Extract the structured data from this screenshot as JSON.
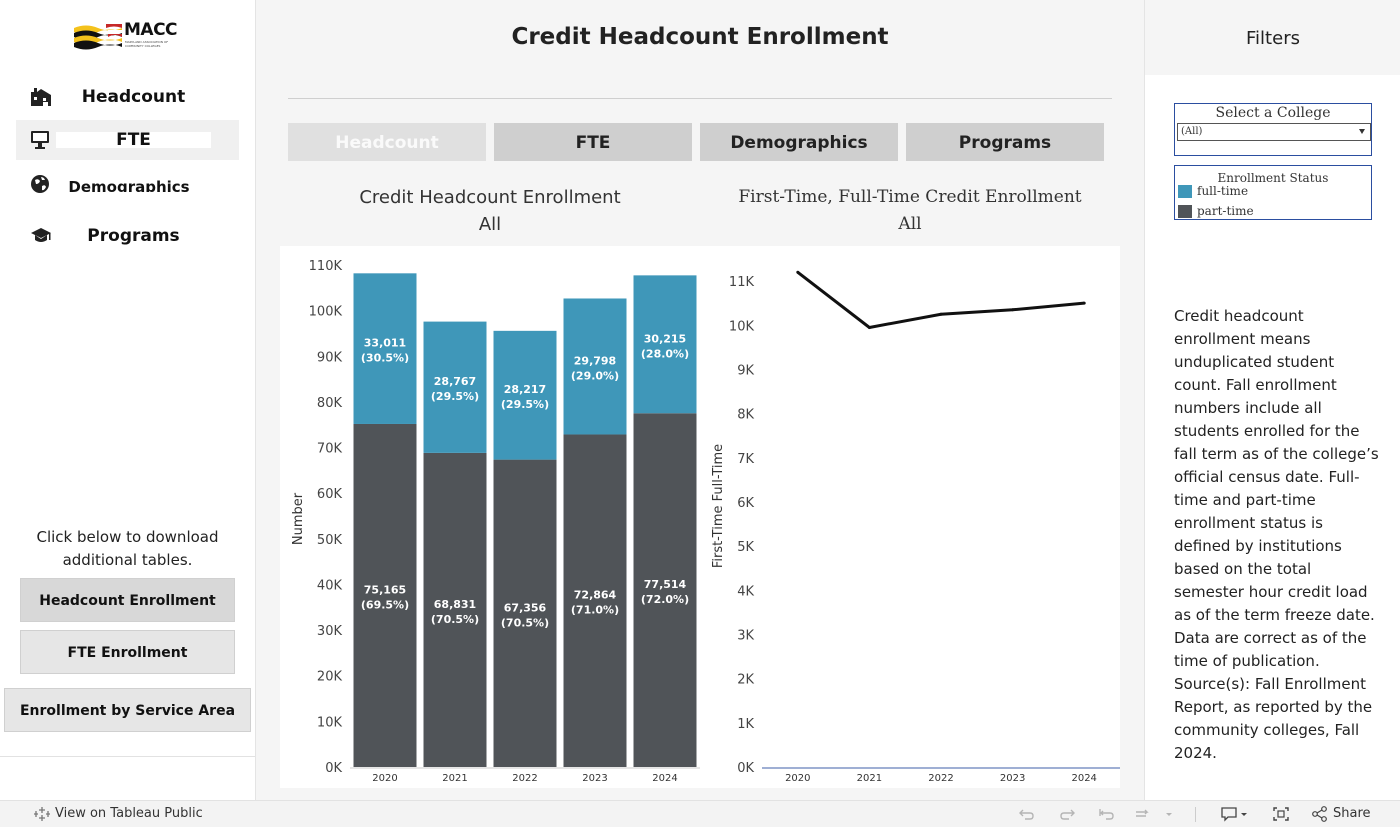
{
  "sidebar": {
    "logo_text": "MACC",
    "logo_subtext": "MARYLAND ASSOCIATION OF COMMUNITY COLLEGES",
    "nav": [
      {
        "label": "Headcount",
        "icon": "building-icon"
      },
      {
        "label": "FTE",
        "icon": "monitor-icon"
      },
      {
        "label": "Demographics",
        "icon": "globe-icon"
      },
      {
        "label": "Programs",
        "icon": "graduation-cap-icon"
      }
    ],
    "download_note": "Click below to download additional tables.",
    "downloads": [
      "Headcount Enrollment",
      "FTE Enrollment",
      "Enrollment by Service Area"
    ]
  },
  "header": {
    "title": "Credit Headcount Enrollment",
    "tabs": [
      "Headcount",
      "FTE",
      "Demographics",
      "Programs"
    ],
    "active_tab": "Headcount"
  },
  "filters": {
    "title": "Filters",
    "college_label": "Select a College",
    "college_value": "(All)",
    "status_label": "Enrollment Status",
    "status_items": [
      {
        "label": "full-time",
        "color": "#3f97b9"
      },
      {
        "label": "part-time",
        "color": "#505458"
      }
    ],
    "description": "Credit headcount enrollment means unduplicated student count. Fall enrollment numbers include all students enrolled for the fall term as of the college’s official census date.  Full-time and part-time enrollment status is defined by institutions based on the total semester hour credit load as of the term freeze date.  Data are correct as of the time of publication. Source(s):  Fall Enrollment Report, as reported by the community colleges, Fall 2024."
  },
  "footer": {
    "tableau_link": "View on Tableau Public",
    "share_label": "Share"
  },
  "chart_data": [
    {
      "type": "bar",
      "title": "Credit Headcount Enrollment",
      "subtitle": "All",
      "ylabel": "Number",
      "xlabel": "",
      "ylim": [
        0,
        110000
      ],
      "ytick_labels": [
        "0K",
        "10K",
        "20K",
        "30K",
        "40K",
        "50K",
        "60K",
        "70K",
        "80K",
        "90K",
        "100K",
        "110K"
      ],
      "categories": [
        "2020",
        "2021",
        "2022",
        "2023",
        "2024"
      ],
      "stacked": true,
      "series": [
        {
          "name": "part-time",
          "color": "#505458",
          "values": [
            75165,
            68831,
            67356,
            72864,
            77514
          ],
          "labels": [
            "75,165",
            "68,831",
            "67,356",
            "72,864",
            "77,514"
          ],
          "pct_labels": [
            "(69.5%)",
            "(70.5%)",
            "(70.5%)",
            "(71.0%)",
            "(72.0%)"
          ]
        },
        {
          "name": "full-time",
          "color": "#3f97b9",
          "values": [
            33011,
            28767,
            28217,
            29798,
            30215
          ],
          "labels": [
            "33,011",
            "28,767",
            "28,217",
            "29,798",
            "30,215"
          ],
          "pct_labels": [
            "(30.5%)",
            "(29.5%)",
            "(29.5%)",
            "(29.0%)",
            "(28.0%)"
          ]
        }
      ],
      "grid": false
    },
    {
      "type": "line",
      "title": "First-Time, Full-Time Credit Enrollment",
      "subtitle": "All",
      "ylabel": "First-Time Full-Time",
      "xlabel": "",
      "ylim": [
        0,
        11500
      ],
      "ytick_labels": [
        "0K",
        "1K",
        "2K",
        "3K",
        "4K",
        "5K",
        "6K",
        "7K",
        "8K",
        "9K",
        "10K",
        "11K"
      ],
      "x": [
        "2020",
        "2021",
        "2022",
        "2023",
        "2024"
      ],
      "series": [
        {
          "color": "#111111",
          "values": [
            11200,
            9950,
            10250,
            10350,
            10500
          ]
        }
      ],
      "grid": false
    }
  ]
}
